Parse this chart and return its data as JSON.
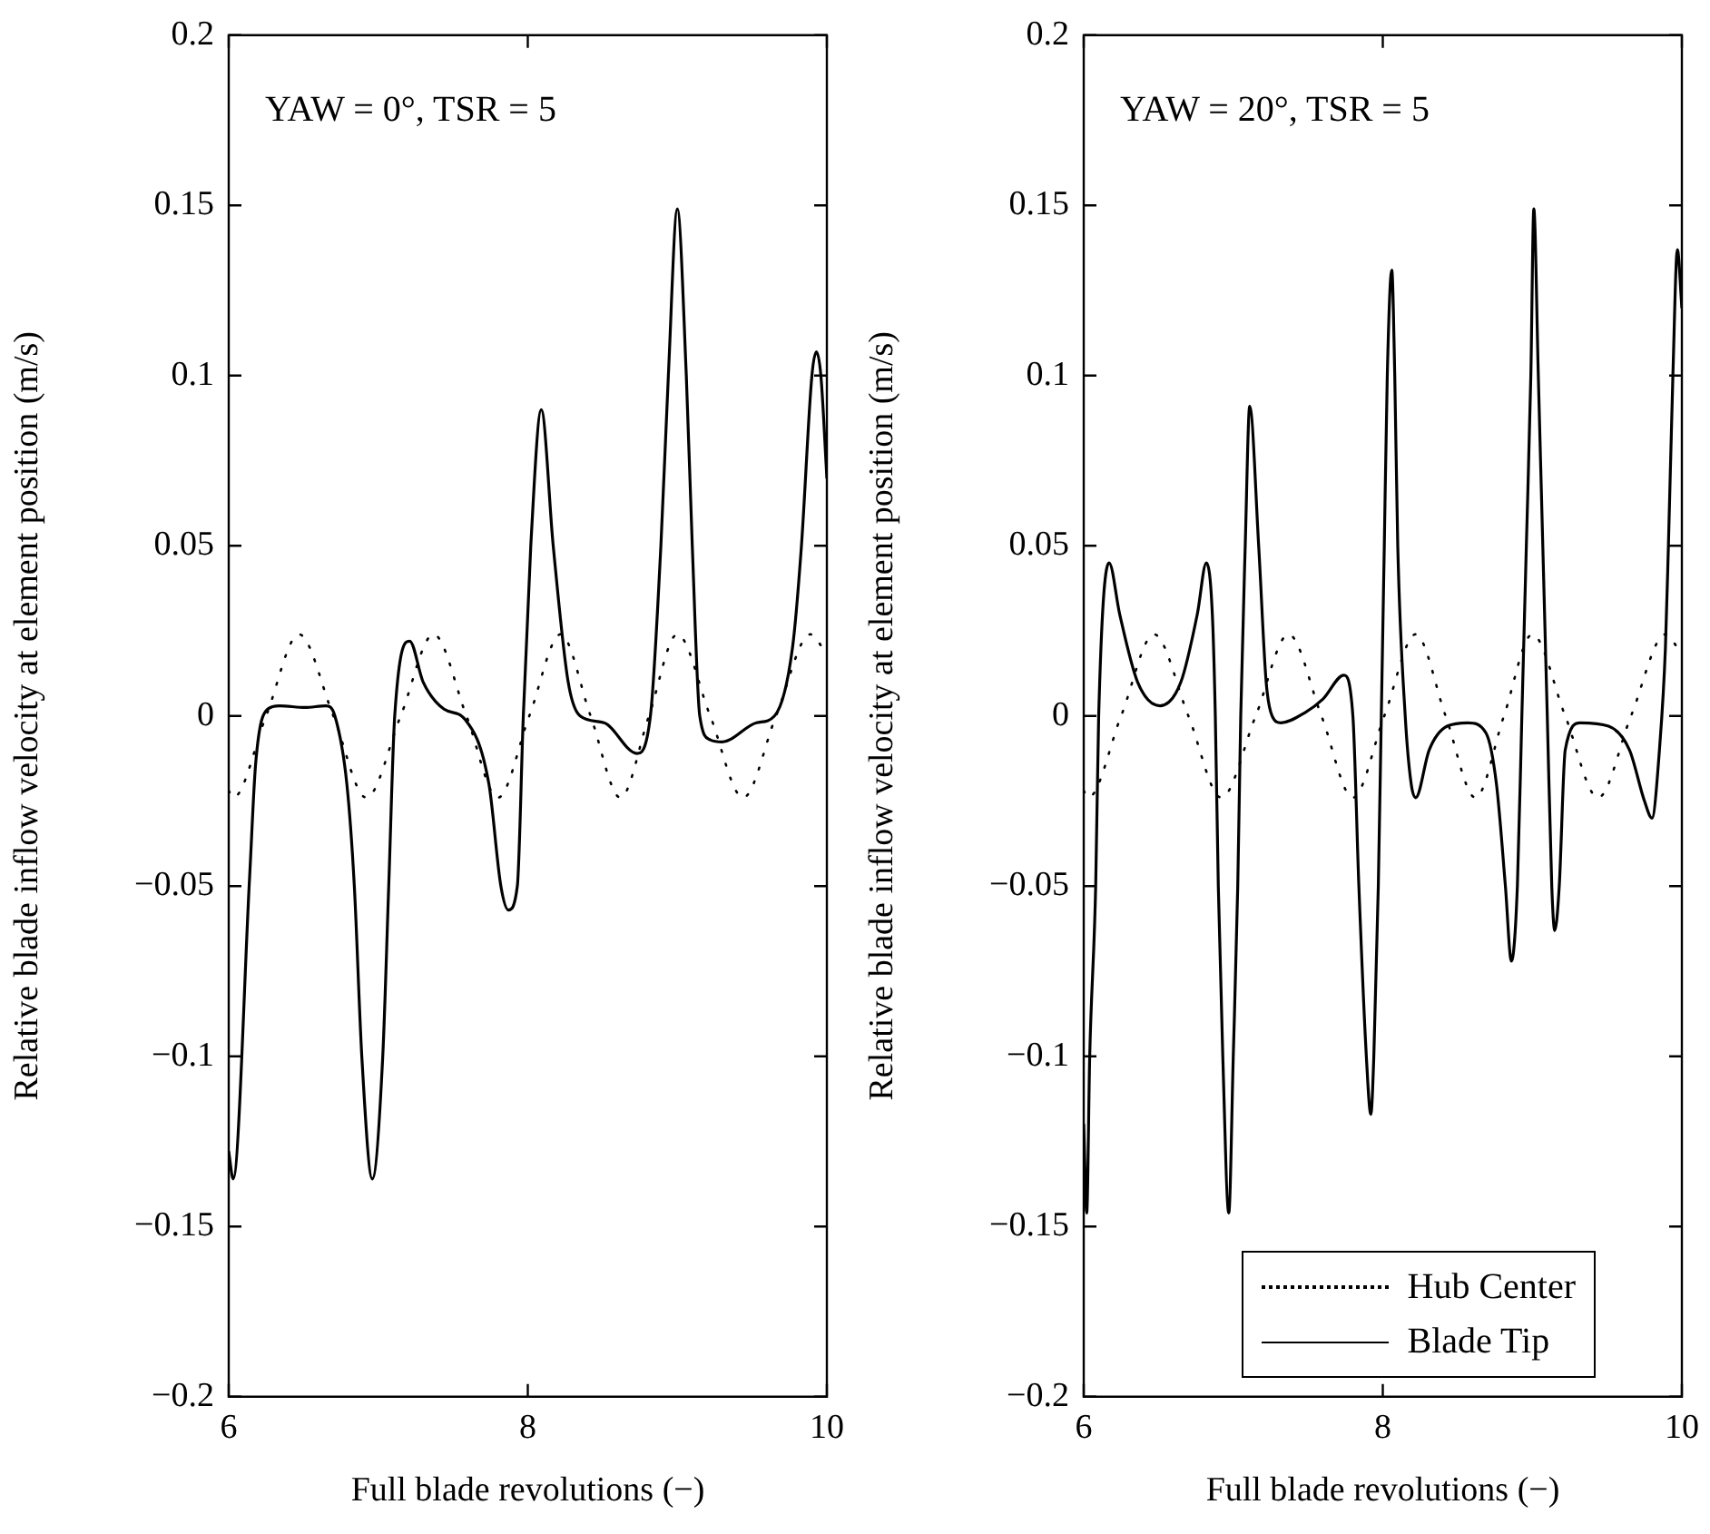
{
  "chart_data": [
    {
      "type": "line",
      "title": "YAW = 0°, TSR = 5",
      "xlabel": "Full blade revolutions (−)",
      "ylabel": "Relative blade inflow velocity at element position (m/s)",
      "xlim": [
        6,
        10
      ],
      "ylim": [
        -0.2,
        0.2
      ],
      "xticks": [
        6,
        8,
        10
      ],
      "yticks": [
        {
          "value": -0.2,
          "label": "−0.2"
        },
        {
          "value": -0.15,
          "label": "−0.15"
        },
        {
          "value": -0.1,
          "label": "−0.1"
        },
        {
          "value": -0.05,
          "label": "−0.05"
        },
        0,
        0.05,
        0.1,
        0.15,
        0.2
      ],
      "grid": false,
      "legend": false,
      "marker": "none",
      "series": [
        {
          "color": "#000000",
          "line_style": "dotted",
          "x": [
            6.0,
            6.03,
            6.25,
            6.47,
            6.7,
            6.92,
            7.15,
            7.37,
            7.59,
            7.8,
            8.01,
            8.22,
            8.42,
            8.62,
            8.81,
            9.0,
            9.22,
            9.44,
            9.66,
            9.89,
            10.0
          ],
          "values": [
            -0.022,
            -0.024,
            0,
            0.024,
            0,
            -0.024,
            0,
            0.024,
            0,
            -0.024,
            0,
            0.024,
            0,
            -0.024,
            0,
            0.024,
            0,
            -0.024,
            0,
            0.024,
            0.018
          ]
        },
        {
          "color": "#000000",
          "line_style": "solid",
          "x": [
            6.0,
            6.03,
            6.14,
            6.18,
            6.26,
            6.34,
            6.51,
            6.65,
            6.71,
            6.79,
            6.84,
            6.89,
            6.96,
            7.03,
            7.07,
            7.11,
            7.21,
            7.3,
            7.44,
            7.58,
            7.74,
            7.82,
            7.87,
            7.93,
            7.97,
            8.02,
            8.09,
            8.17,
            8.27,
            8.35,
            8.51,
            8.73,
            8.82,
            8.89,
            8.94,
            9.0,
            9.06,
            9.1,
            9.15,
            9.22,
            9.3,
            9.53,
            9.65,
            9.77,
            9.83,
            9.9,
            9.93,
            9.96,
            10.0
          ],
          "values": [
            -0.128,
            -0.136,
            -0.047,
            -0.014,
            0.002,
            0.003,
            0.0025,
            0.003,
            0,
            -0.02,
            -0.05,
            -0.1,
            -0.136,
            -0.1,
            -0.05,
            0,
            0.022,
            0.01,
            0.002,
            -0.001,
            -0.02,
            -0.05,
            -0.057,
            -0.05,
            0,
            0.05,
            0.09,
            0.05,
            0.01,
            0,
            -0.002,
            -0.011,
            0,
            0.05,
            0.1,
            0.149,
            0.1,
            0.05,
            0,
            -0.007,
            -0.0076,
            -0.002,
            0,
            0.02,
            0.05,
            0.1,
            0.107,
            0.1,
            0.07
          ]
        }
      ]
    },
    {
      "type": "line",
      "title": "YAW = 20°, TSR = 5",
      "xlabel": "Full blade revolutions (−)",
      "ylabel": "Relative blade inflow velocity at element position (m/s)",
      "xlim": [
        6,
        10
      ],
      "ylim": [
        -0.2,
        0.2
      ],
      "xticks": [
        6,
        8,
        10
      ],
      "yticks": [
        {
          "value": -0.2,
          "label": "−0.2"
        },
        {
          "value": -0.15,
          "label": "−0.15"
        },
        {
          "value": -0.1,
          "label": "−0.1"
        },
        {
          "value": -0.05,
          "label": "−0.05"
        },
        0,
        0.05,
        0.1,
        0.15,
        0.2
      ],
      "grid": false,
      "legend": "bottom",
      "marker": "none",
      "series": [
        {
          "name": "Hub Center",
          "color": "#000000",
          "line_style": "dotted",
          "x": [
            6.0,
            6.03,
            6.25,
            6.47,
            6.7,
            6.92,
            7.15,
            7.37,
            7.59,
            7.8,
            8.01,
            8.22,
            8.42,
            8.62,
            8.81,
            9.0,
            9.22,
            9.44,
            9.66,
            9.89,
            10.0
          ],
          "values": [
            -0.022,
            -0.024,
            0,
            0.024,
            0,
            -0.024,
            0,
            0.024,
            0,
            -0.024,
            0,
            0.024,
            0,
            -0.024,
            0,
            0.024,
            0,
            -0.024,
            0,
            0.024,
            0.018
          ]
        },
        {
          "name": "Blade Tip",
          "color": "#000000",
          "line_style": "solid",
          "x": [
            6.0,
            6.02,
            6.04,
            6.08,
            6.1,
            6.17,
            6.24,
            6.36,
            6.51,
            6.65,
            6.76,
            6.82,
            6.86,
            6.88,
            6.9,
            6.93,
            6.97,
            7.0,
            7.03,
            7.05,
            7.08,
            7.11,
            7.17,
            7.22,
            7.26,
            7.32,
            7.48,
            7.6,
            7.74,
            7.8,
            7.84,
            7.89,
            7.92,
            7.94,
            7.97,
            7.99,
            8.01,
            8.03,
            8.06,
            8.08,
            8.1,
            8.15,
            8.19,
            8.22,
            8.31,
            8.43,
            8.57,
            8.69,
            8.76,
            8.82,
            8.86,
            8.9,
            8.93,
            8.96,
            8.99,
            9.01,
            9.04,
            9.07,
            9.1,
            9.13,
            9.15,
            9.18,
            9.22,
            9.32,
            9.51,
            9.65,
            9.75,
            9.8,
            9.85,
            9.89,
            9.91,
            9.94,
            9.97,
            10.0
          ],
          "values": [
            -0.12,
            -0.146,
            -0.1,
            -0.05,
            0,
            0.045,
            0.03,
            0.01,
            0.003,
            0.01,
            0.03,
            0.045,
            0.03,
            0,
            -0.05,
            -0.1,
            -0.146,
            -0.1,
            -0.05,
            0,
            0.05,
            0.091,
            0.05,
            0.01,
            0,
            -0.002,
            0.001,
            0.005,
            0.012,
            0,
            -0.05,
            -0.1,
            -0.117,
            -0.1,
            -0.05,
            0,
            0.05,
            0.1,
            0.131,
            0.1,
            0.05,
            0,
            -0.02,
            -0.024,
            -0.01,
            -0.003,
            -0.002,
            -0.005,
            -0.02,
            -0.05,
            -0.072,
            -0.05,
            0,
            0.05,
            0.1,
            0.149,
            0.1,
            0.05,
            0,
            -0.05,
            -0.063,
            -0.05,
            -0.01,
            -0.002,
            -0.003,
            -0.01,
            -0.025,
            -0.03,
            -0.01,
            0.02,
            0.05,
            0.1,
            0.137,
            0.12
          ]
        }
      ]
    }
  ]
}
